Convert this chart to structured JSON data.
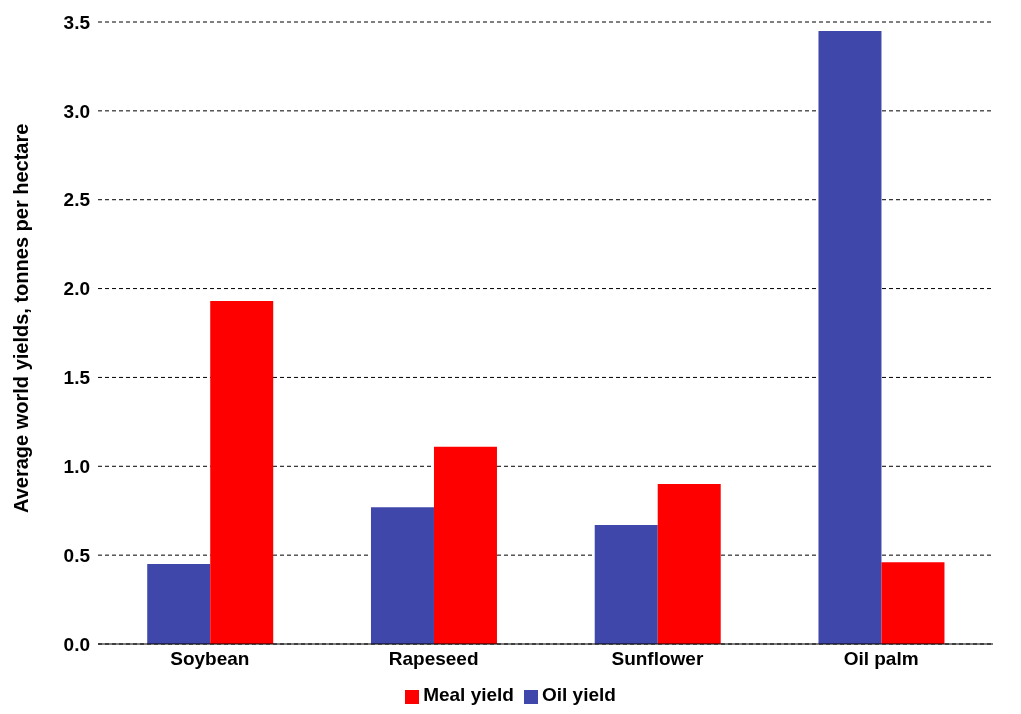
{
  "chart_data": {
    "type": "bar",
    "ylabel": "Average world yields, tonnes per hectare",
    "categories": [
      "Soybean",
      "Rapeseed",
      "Sunflower",
      "Oil palm"
    ],
    "series": [
      {
        "name": "Oil yield",
        "color": "#3f48aa",
        "values": [
          0.45,
          0.77,
          0.67,
          3.45
        ]
      },
      {
        "name": "Meal yield",
        "color": "#ff0000",
        "values": [
          1.93,
          1.11,
          0.9,
          0.46
        ]
      }
    ],
    "ylim": [
      0,
      3.5
    ],
    "yticks": [
      {
        "value": 0,
        "label": "0.0"
      },
      {
        "value": 0.5,
        "label": "0.5"
      },
      {
        "value": 1,
        "label": "1.0"
      },
      {
        "value": 1.5,
        "label": "1.5"
      },
      {
        "value": 2,
        "label": "2.0"
      },
      {
        "value": 2.5,
        "label": "2.5"
      },
      {
        "value": 3,
        "label": "3.0"
      },
      {
        "value": 3.5,
        "label": "3.5"
      }
    ],
    "grid": "y",
    "legend": "bottom"
  }
}
